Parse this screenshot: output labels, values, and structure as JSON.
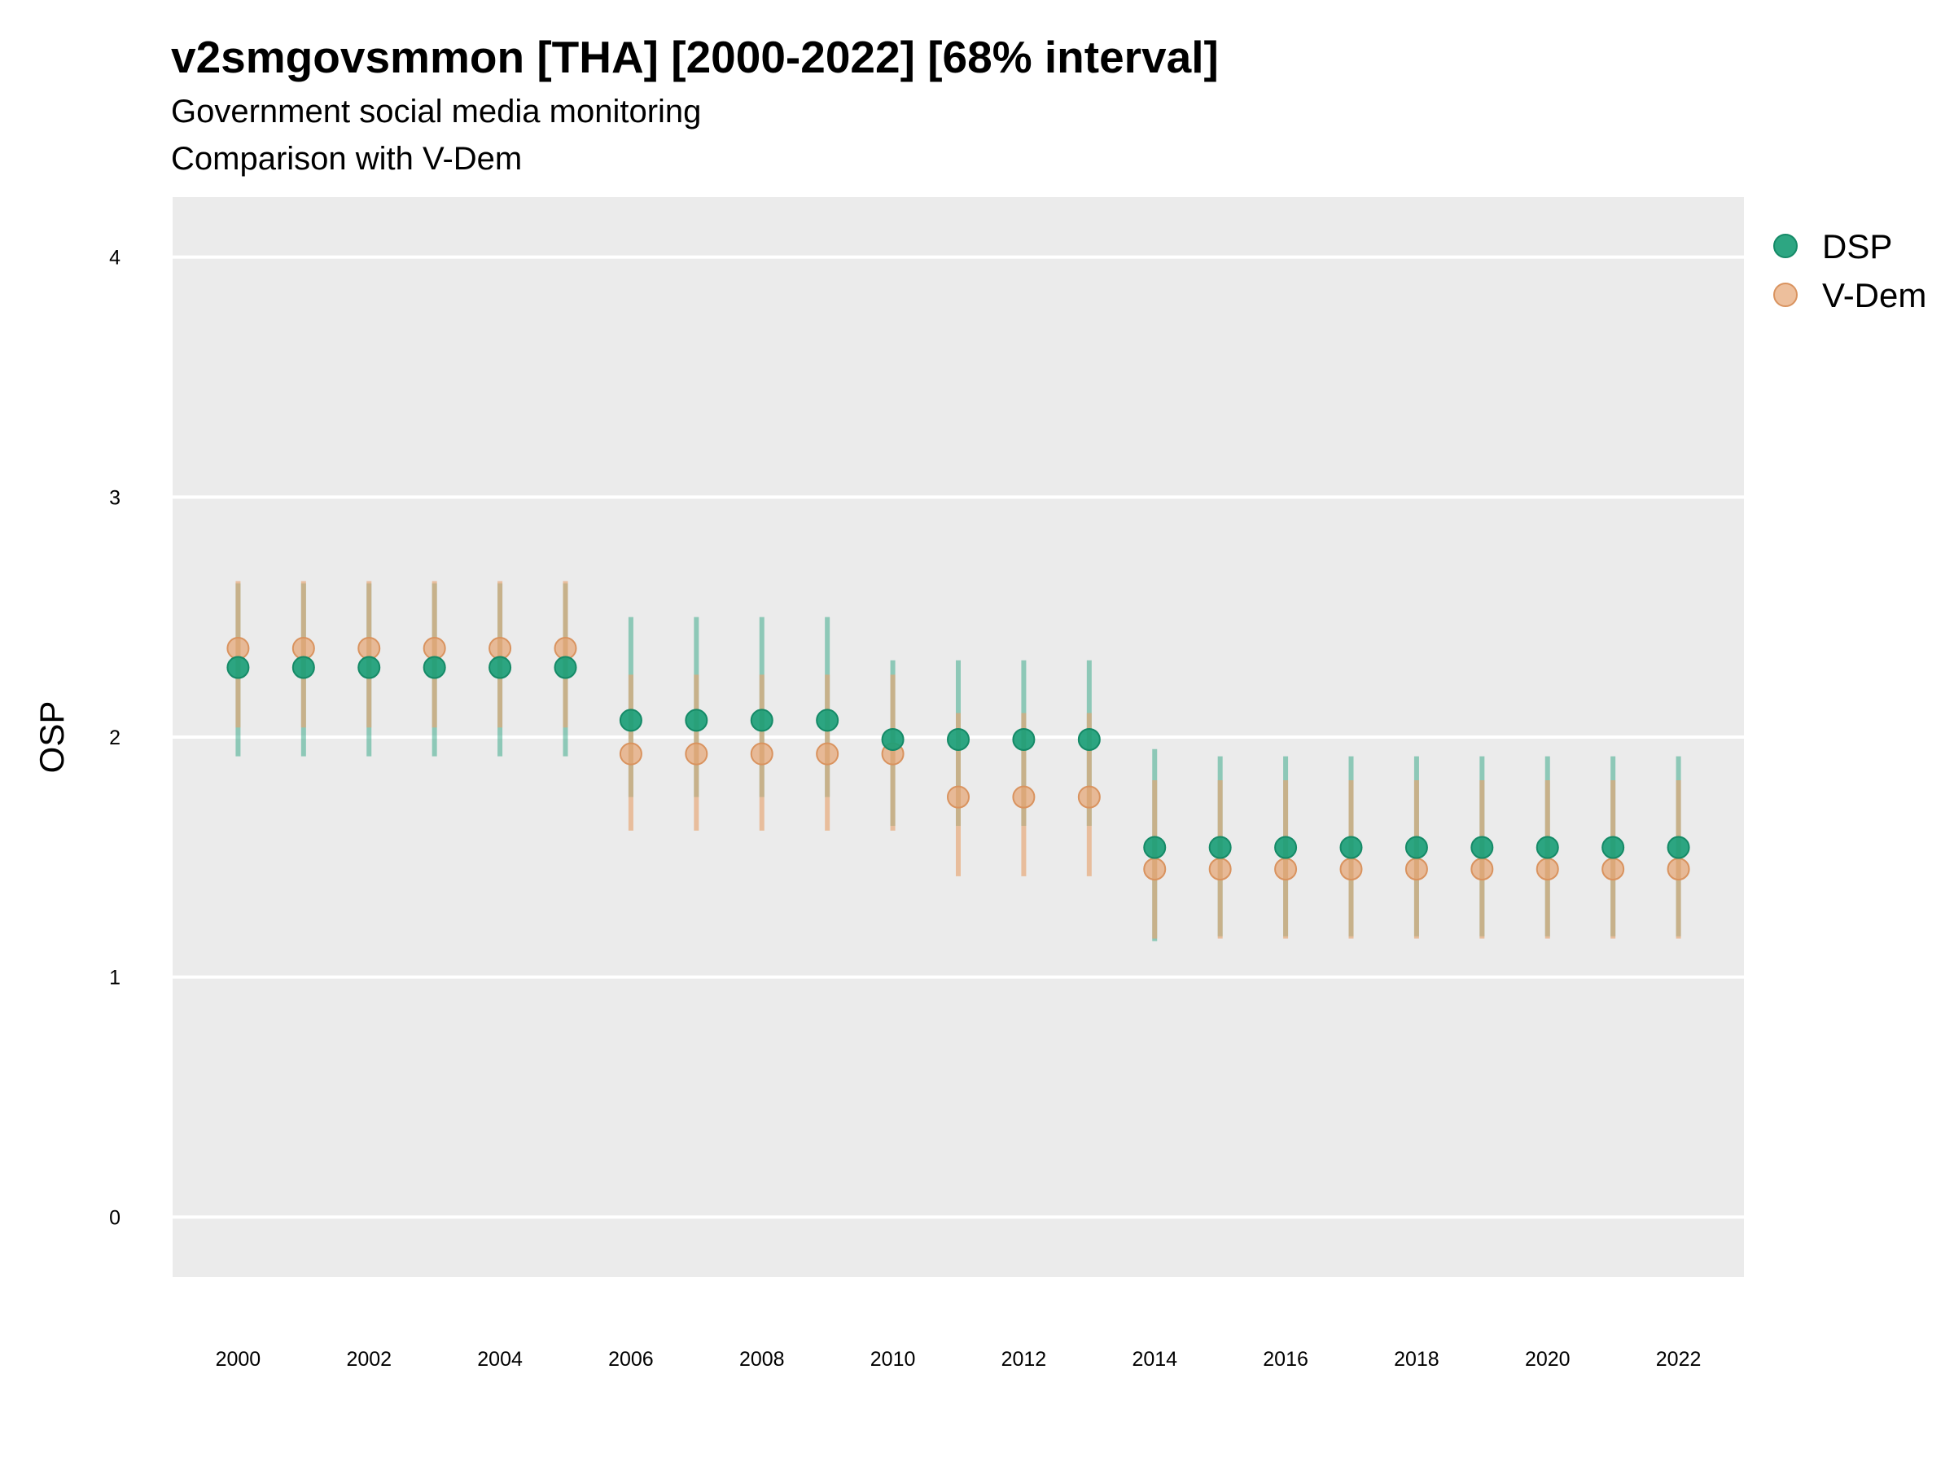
{
  "chart_data": {
    "type": "scatter",
    "title": "v2smgovsmmon [THA] [2000-2022] [68% interval]",
    "subtitle": "Government social media monitoring",
    "caption": "Comparison with V-Dem",
    "xlabel": "",
    "ylabel": "OSP",
    "ylim": [
      -0.25,
      4.25
    ],
    "xlim": [
      1999,
      2023
    ],
    "yticks": [
      "0",
      "1",
      "2",
      "3",
      "4"
    ],
    "xticks": [
      "2000",
      "2002",
      "2004",
      "2006",
      "2008",
      "2010",
      "2012",
      "2014",
      "2016",
      "2018",
      "2020",
      "2022"
    ],
    "grid": true,
    "legend_position": "right",
    "x": [
      2000,
      2001,
      2002,
      2003,
      2004,
      2005,
      2006,
      2007,
      2008,
      2009,
      2010,
      2011,
      2012,
      2013,
      2014,
      2015,
      2016,
      2017,
      2018,
      2019,
      2020,
      2021,
      2022
    ],
    "series": [
      {
        "name": "DSP",
        "color": "#1b9e77",
        "values": [
          2.29,
          2.29,
          2.29,
          2.29,
          2.29,
          2.29,
          2.07,
          2.07,
          2.07,
          2.07,
          1.99,
          1.99,
          1.99,
          1.99,
          1.54,
          1.54,
          1.54,
          1.54,
          1.54,
          1.54,
          1.54,
          1.54,
          1.54
        ],
        "lower": [
          1.92,
          1.92,
          1.92,
          1.92,
          1.92,
          1.92,
          1.75,
          1.75,
          1.75,
          1.75,
          1.63,
          1.63,
          1.63,
          1.63,
          1.15,
          1.17,
          1.17,
          1.17,
          1.17,
          1.17,
          1.17,
          1.17,
          1.17
        ],
        "upper": [
          2.64,
          2.64,
          2.64,
          2.64,
          2.64,
          2.64,
          2.5,
          2.5,
          2.5,
          2.5,
          2.32,
          2.32,
          2.32,
          2.32,
          1.95,
          1.92,
          1.92,
          1.92,
          1.92,
          1.92,
          1.92,
          1.92,
          1.92
        ]
      },
      {
        "name": "V-Dem",
        "color": "#e6a472",
        "values": [
          2.37,
          2.37,
          2.37,
          2.37,
          2.37,
          2.37,
          1.93,
          1.93,
          1.93,
          1.93,
          1.93,
          1.75,
          1.75,
          1.75,
          1.45,
          1.45,
          1.45,
          1.45,
          1.45,
          1.45,
          1.45,
          1.45,
          1.45
        ],
        "lower": [
          2.04,
          2.04,
          2.04,
          2.04,
          2.04,
          2.04,
          1.61,
          1.61,
          1.61,
          1.61,
          1.61,
          1.42,
          1.42,
          1.42,
          1.16,
          1.16,
          1.16,
          1.16,
          1.16,
          1.16,
          1.16,
          1.16,
          1.16
        ],
        "upper": [
          2.65,
          2.65,
          2.65,
          2.65,
          2.65,
          2.65,
          2.26,
          2.26,
          2.26,
          2.26,
          2.26,
          2.1,
          2.1,
          2.1,
          1.82,
          1.82,
          1.82,
          1.82,
          1.82,
          1.82,
          1.82,
          1.82,
          1.82
        ]
      }
    ]
  }
}
